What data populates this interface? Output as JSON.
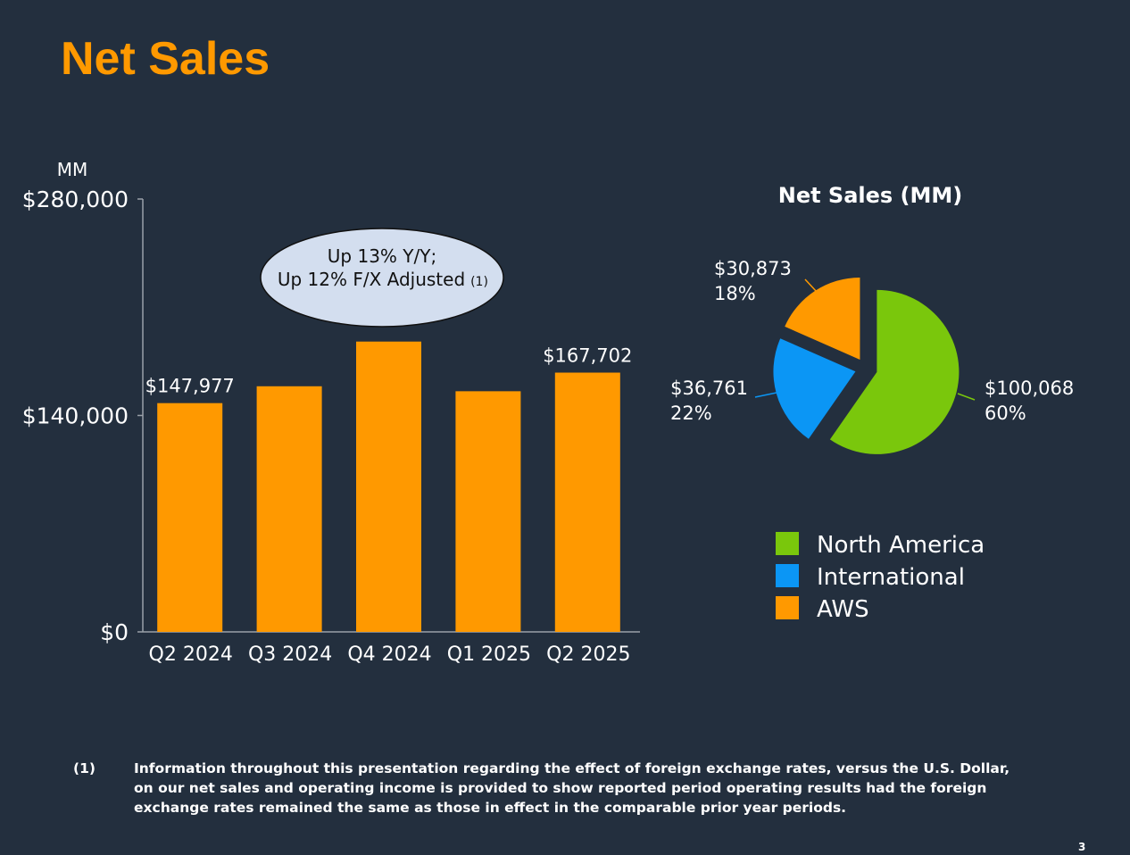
{
  "slide": {
    "title": "Net Sales",
    "page_number": "3"
  },
  "annotation": {
    "line1": "Up 13% Y/Y;",
    "line2": "Up 12% F/X Adjusted",
    "footnote_ref": "(1)"
  },
  "footnote": {
    "number": "(1)",
    "text": "Information throughout this presentation regarding the effect of foreign exchange rates, versus the U.S. Dollar, on our net sales and operating income is provided to show reported period operating results had the foreign exchange rates remained the same as those in effect in the comparable prior year periods."
  },
  "colors": {
    "background": "#232f3e",
    "accent": "#ff9900",
    "north_america": "#7ac70c",
    "international": "#0b96f5",
    "aws": "#ff9900",
    "callout_fill": "#d3deef"
  },
  "chart_data": [
    {
      "type": "bar",
      "unit_label": "MM",
      "categories": [
        "Q2 2024",
        "Q3 2024",
        "Q4 2024",
        "Q1 2025",
        "Q2 2025"
      ],
      "values": [
        147977,
        158877,
        187792,
        155667,
        167702
      ],
      "value_labels": [
        "$147,977",
        "",
        "",
        "",
        "$167,702"
      ],
      "ylim": [
        0,
        280000
      ],
      "yticks": [
        0,
        140000,
        280000
      ],
      "ytick_labels": [
        "$0",
        "$140,000",
        "$280,000"
      ],
      "color": "#ff9900",
      "grid": false
    },
    {
      "type": "pie",
      "title": "Net Sales (MM)",
      "slices": [
        {
          "name": "North America",
          "value": 100068,
          "value_label": "$100,068",
          "percent_label": "60%",
          "color": "#7ac70c"
        },
        {
          "name": "International",
          "value": 36761,
          "value_label": "$36,761",
          "percent_label": "22%",
          "color": "#0b96f5"
        },
        {
          "name": "AWS",
          "value": 30873,
          "value_label": "$30,873",
          "percent_label": "18%",
          "color": "#ff9900"
        }
      ],
      "legend": [
        "North America",
        "International",
        "AWS"
      ],
      "legend_position": "bottom"
    }
  ]
}
